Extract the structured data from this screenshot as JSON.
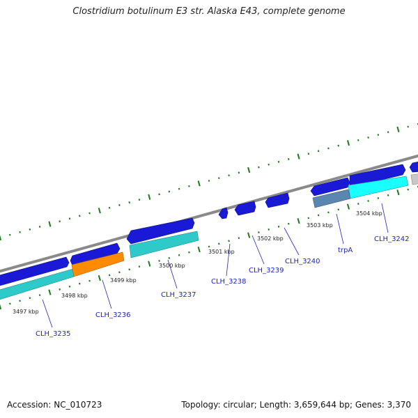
{
  "title": "Clostridium botulinum E3 str. Alaska E43, complete genome",
  "footer": {
    "accession": "Accession: NC_010723",
    "stats": "Topology: circular; Length: 3,659,644 bp; Genes: 3,370"
  },
  "ruler": {
    "labels": [
      "3497 kbp",
      "3498 kbp",
      "3499 kbp",
      "3500 kbp",
      "3501 kbp",
      "3502 kbp",
      "3503 kbp",
      "3504 kbp"
    ]
  },
  "colors": {
    "backbone": "#8a8a8a",
    "gene_forward": "#1a1ad6",
    "gene_reverse": "#1a1ad6",
    "cds_cyan": "#2ec9c9",
    "cds_bright_cyan": "#19ffff",
    "cds_orange": "#ff8c00",
    "cds_steel": "#5a86b0",
    "cds_gray": "#c8c8c8",
    "tick_green": "#1a7a1a",
    "label_blue": "#1f24b8"
  },
  "genes": [
    {
      "label": "CLH_3235"
    },
    {
      "label": "CLH_3236"
    },
    {
      "label": "CLH_3237"
    },
    {
      "label": "CLH_3238"
    },
    {
      "label": "CLH_3239"
    },
    {
      "label": "CLH_3240"
    },
    {
      "label": "trpA"
    },
    {
      "label": "CLH_3242"
    }
  ]
}
